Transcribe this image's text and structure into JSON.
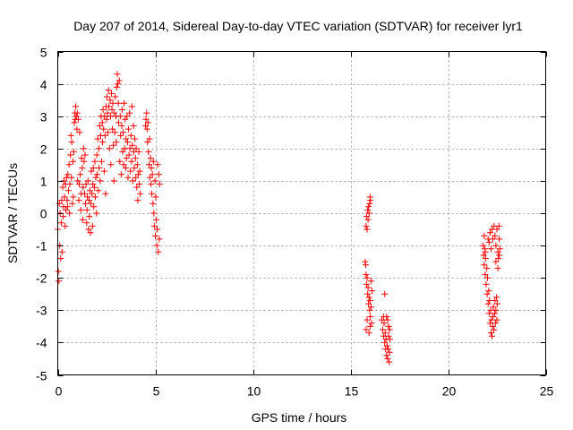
{
  "chart_data": {
    "type": "scatter",
    "title": "Day 207 of 2014, Sidereal Day-to-day VTEC variation (SDTVAR) for receiver lyr1",
    "xlabel": "GPS time / hours",
    "ylabel": "SDTVAR / TECUs",
    "xlim": [
      0,
      25
    ],
    "ylim": [
      -5,
      5
    ],
    "x_ticks": [
      "0",
      "5",
      "10",
      "15",
      "20",
      "25"
    ],
    "y_ticks": [
      "-5",
      "-4",
      "-3",
      "-2",
      "-1",
      "0",
      "1",
      "2",
      "3",
      "4",
      "5"
    ],
    "grid": true,
    "marker": "+",
    "color": "#ff0000",
    "series": [
      {
        "name": "SDTVAR",
        "points": [
          [
            0.0,
            -0.5
          ],
          [
            0.03,
            -1.8
          ],
          [
            0.06,
            -2.1
          ],
          [
            0.08,
            0.3
          ],
          [
            0.1,
            -1.0
          ],
          [
            0.12,
            0.0
          ],
          [
            0.15,
            -1.4
          ],
          [
            0.18,
            -0.3
          ],
          [
            0.2,
            0.4
          ],
          [
            0.22,
            -1.2
          ],
          [
            0.25,
            0.8
          ],
          [
            0.28,
            -0.1
          ],
          [
            0.3,
            0.2
          ],
          [
            0.32,
            1.0
          ],
          [
            0.35,
            0.5
          ],
          [
            0.38,
            -0.4
          ],
          [
            0.4,
            0.9
          ],
          [
            0.42,
            0.1
          ],
          [
            0.45,
            1.1
          ],
          [
            0.48,
            0.4
          ],
          [
            0.5,
            0.2
          ],
          [
            0.52,
            1.2
          ],
          [
            0.55,
            0.7
          ],
          [
            0.58,
            1.5
          ],
          [
            0.6,
            0.0
          ],
          [
            0.62,
            0.9
          ],
          [
            0.65,
            1.8
          ],
          [
            0.68,
            2.4
          ],
          [
            0.7,
            1.1
          ],
          [
            0.72,
            2.2
          ],
          [
            0.75,
            0.3
          ],
          [
            0.78,
            1.6
          ],
          [
            0.8,
            0.5
          ],
          [
            0.82,
            1.9
          ],
          [
            0.85,
            2.8
          ],
          [
            0.88,
            3.1
          ],
          [
            0.9,
            2.9
          ],
          [
            0.92,
            3.3
          ],
          [
            0.95,
            3.0
          ],
          [
            0.98,
            2.6
          ],
          [
            1.0,
            3.1
          ],
          [
            1.02,
            1.0
          ],
          [
            1.05,
            2.9
          ],
          [
            1.08,
            0.4
          ],
          [
            1.1,
            0.9
          ],
          [
            1.12,
            2.5
          ],
          [
            1.15,
            1.2
          ],
          [
            1.18,
            0.1
          ],
          [
            1.2,
            0.6
          ],
          [
            1.22,
            1.7
          ],
          [
            1.25,
            1.4
          ],
          [
            1.28,
            -0.2
          ],
          [
            1.3,
            0.8
          ],
          [
            1.32,
            2.0
          ],
          [
            1.35,
            1.6
          ],
          [
            1.38,
            0.6
          ],
          [
            1.4,
            1.8
          ],
          [
            1.42,
            0.3
          ],
          [
            1.45,
            0.9
          ],
          [
            1.48,
            -0.3
          ],
          [
            1.5,
            0.1
          ],
          [
            1.52,
            0.5
          ],
          [
            1.55,
            1.0
          ],
          [
            1.58,
            -0.5
          ],
          [
            1.6,
            0.4
          ],
          [
            1.62,
            -0.1
          ],
          [
            1.65,
            0.7
          ],
          [
            1.68,
            -0.6
          ],
          [
            1.7,
            0.3
          ],
          [
            1.72,
            1.3
          ],
          [
            1.75,
            0.6
          ],
          [
            1.78,
            -0.4
          ],
          [
            1.8,
            0.9
          ],
          [
            1.82,
            1.4
          ],
          [
            1.85,
            0.2
          ],
          [
            1.88,
            0.8
          ],
          [
            1.9,
            1.6
          ],
          [
            1.92,
            0.5
          ],
          [
            1.95,
            1.1
          ],
          [
            1.98,
            0.0
          ],
          [
            2.0,
            1.8
          ],
          [
            2.02,
            1.2
          ],
          [
            2.05,
            2.3
          ],
          [
            2.08,
            0.7
          ],
          [
            2.1,
            2.0
          ],
          [
            2.12,
            1.4
          ],
          [
            2.15,
            2.7
          ],
          [
            2.18,
            1.0
          ],
          [
            2.2,
            2.4
          ],
          [
            2.22,
            3.0
          ],
          [
            2.25,
            1.6
          ],
          [
            2.28,
            2.8
          ],
          [
            2.3,
            2.2
          ],
          [
            2.32,
            3.2
          ],
          [
            2.35,
            2.6
          ],
          [
            2.38,
            1.3
          ],
          [
            2.4,
            3.0
          ],
          [
            2.42,
            2.4
          ],
          [
            2.45,
            0.6
          ],
          [
            2.48,
            3.3
          ],
          [
            2.5,
            2.9
          ],
          [
            2.52,
            3.6
          ],
          [
            2.55,
            3.1
          ],
          [
            2.58,
            2.5
          ],
          [
            2.6,
            3.8
          ],
          [
            2.62,
            3.3
          ],
          [
            2.65,
            2.0
          ],
          [
            2.68,
            3.5
          ],
          [
            2.7,
            3.0
          ],
          [
            2.72,
            1.5
          ],
          [
            2.75,
            3.7
          ],
          [
            2.78,
            3.2
          ],
          [
            2.8,
            2.6
          ],
          [
            2.82,
            3.4
          ],
          [
            2.85,
            2.1
          ],
          [
            2.88,
            1.0
          ],
          [
            2.9,
            3.1
          ],
          [
            2.92,
            2.5
          ],
          [
            2.95,
            3.6
          ],
          [
            2.98,
            3.0
          ],
          [
            3.0,
            2.2
          ],
          [
            3.02,
            3.9
          ],
          [
            3.05,
            4.3
          ],
          [
            3.08,
            4.0
          ],
          [
            3.1,
            3.4
          ],
          [
            3.12,
            2.8
          ],
          [
            3.15,
            4.1
          ],
          [
            3.18,
            1.6
          ],
          [
            3.2,
            3.0
          ],
          [
            3.22,
            2.4
          ],
          [
            3.25,
            1.2
          ],
          [
            3.28,
            2.7
          ],
          [
            3.3,
            3.2
          ],
          [
            3.32,
            1.9
          ],
          [
            3.35,
            2.5
          ],
          [
            3.38,
            1.5
          ],
          [
            3.4,
            3.4
          ],
          [
            3.42,
            2.0
          ],
          [
            3.45,
            2.9
          ],
          [
            3.48,
            1.4
          ],
          [
            3.5,
            2.3
          ],
          [
            3.52,
            1.7
          ],
          [
            3.55,
            3.0
          ],
          [
            3.58,
            2.2
          ],
          [
            3.6,
            1.1
          ],
          [
            3.62,
            2.6
          ],
          [
            3.65,
            1.8
          ],
          [
            3.68,
            3.1
          ],
          [
            3.7,
            2.0
          ],
          [
            3.72,
            1.3
          ],
          [
            3.75,
            2.4
          ],
          [
            3.78,
            1.6
          ],
          [
            3.8,
            3.3
          ],
          [
            3.82,
            2.1
          ],
          [
            3.85,
            1.0
          ],
          [
            3.88,
            2.7
          ],
          [
            3.9,
            1.9
          ],
          [
            3.92,
            1.4
          ],
          [
            3.95,
            2.3
          ],
          [
            3.98,
            1.7
          ],
          [
            4.0,
            1.1
          ],
          [
            4.02,
            2.0
          ],
          [
            4.05,
            0.8
          ],
          [
            4.08,
            1.5
          ],
          [
            4.1,
            0.4
          ],
          [
            4.12,
            1.2
          ],
          [
            4.15,
            1.9
          ],
          [
            4.18,
            0.9
          ],
          [
            4.2,
            1.3
          ],
          [
            4.22,
            0.6
          ],
          [
            4.5,
            2.7
          ],
          [
            4.52,
            2.9
          ],
          [
            4.55,
            3.1
          ],
          [
            4.58,
            2.6
          ],
          [
            4.6,
            2.2
          ],
          [
            4.62,
            2.8
          ],
          [
            4.65,
            1.9
          ],
          [
            4.68,
            1.5
          ],
          [
            4.7,
            2.3
          ],
          [
            4.72,
            1.1
          ],
          [
            4.75,
            1.7
          ],
          [
            4.78,
            0.9
          ],
          [
            4.8,
            1.4
          ],
          [
            4.82,
            0.6
          ],
          [
            4.85,
            1.2
          ],
          [
            4.88,
            0.3
          ],
          [
            4.9,
            1.6
          ],
          [
            4.92,
            0.0
          ],
          [
            4.95,
            -0.4
          ],
          [
            4.98,
            1.0
          ],
          [
            5.0,
            -0.7
          ],
          [
            5.02,
            0.5
          ],
          [
            5.05,
            -0.2
          ],
          [
            5.08,
            -1.0
          ],
          [
            5.1,
            -0.5
          ],
          [
            5.12,
            1.5
          ],
          [
            5.15,
            -1.2
          ],
          [
            5.18,
            1.2
          ],
          [
            5.2,
            -0.8
          ],
          [
            5.22,
            0.9
          ],
          [
            15.8,
            -0.4
          ],
          [
            15.82,
            -0.1
          ],
          [
            15.85,
            -0.5
          ],
          [
            15.88,
            0.1
          ],
          [
            15.9,
            -0.2
          ],
          [
            15.92,
            0.2
          ],
          [
            15.95,
            0.0
          ],
          [
            15.98,
            0.3
          ],
          [
            16.0,
            0.5
          ],
          [
            16.02,
            0.4
          ],
          [
            15.75,
            -1.5
          ],
          [
            15.78,
            -1.6
          ],
          [
            15.8,
            -1.9
          ],
          [
            15.82,
            -2.2
          ],
          [
            15.85,
            -2.0
          ],
          [
            15.88,
            -2.5
          ],
          [
            15.9,
            -2.3
          ],
          [
            15.92,
            -2.8
          ],
          [
            15.95,
            -2.6
          ],
          [
            15.98,
            -3.0
          ],
          [
            16.0,
            -2.7
          ],
          [
            16.02,
            -3.2
          ],
          [
            16.05,
            -2.9
          ],
          [
            16.08,
            -3.4
          ],
          [
            16.1,
            -2.4
          ],
          [
            15.8,
            -3.6
          ],
          [
            15.85,
            -3.3
          ],
          [
            16.0,
            -3.5
          ],
          [
            16.05,
            -2.1
          ],
          [
            15.95,
            -3.7
          ],
          [
            16.6,
            -3.3
          ],
          [
            16.65,
            -3.6
          ],
          [
            16.7,
            -3.8
          ],
          [
            16.72,
            -3.4
          ],
          [
            16.75,
            -4.0
          ],
          [
            16.78,
            -3.7
          ],
          [
            16.8,
            -4.2
          ],
          [
            16.82,
            -3.9
          ],
          [
            16.85,
            -4.4
          ],
          [
            16.88,
            -4.1
          ],
          [
            16.9,
            -4.5
          ],
          [
            16.92,
            -4.2
          ],
          [
            16.95,
            -3.8
          ],
          [
            16.98,
            -4.6
          ],
          [
            17.0,
            -4.3
          ],
          [
            17.02,
            -3.9
          ],
          [
            16.85,
            -3.2
          ],
          [
            16.95,
            -3.5
          ],
          [
            16.7,
            -3.2
          ],
          [
            17.0,
            -3.6
          ],
          [
            16.75,
            -2.5
          ],
          [
            16.9,
            -3.3
          ],
          [
            21.8,
            -1.0
          ],
          [
            21.82,
            -1.3
          ],
          [
            21.85,
            -1.6
          ],
          [
            21.88,
            -1.1
          ],
          [
            21.9,
            -1.9
          ],
          [
            21.92,
            -1.4
          ],
          [
            21.95,
            -2.2
          ],
          [
            21.98,
            -1.7
          ],
          [
            22.0,
            -2.5
          ],
          [
            22.02,
            -2.0
          ],
          [
            22.05,
            -2.8
          ],
          [
            22.08,
            -2.4
          ],
          [
            22.1,
            -3.1
          ],
          [
            22.12,
            -2.7
          ],
          [
            22.15,
            -3.4
          ],
          [
            22.18,
            -3.0
          ],
          [
            22.2,
            -3.7
          ],
          [
            22.22,
            -3.3
          ],
          [
            22.25,
            -3.8
          ],
          [
            22.28,
            -3.5
          ],
          [
            22.3,
            -3.2
          ],
          [
            22.32,
            -2.9
          ],
          [
            22.35,
            -3.6
          ],
          [
            22.38,
            -3.1
          ],
          [
            22.4,
            -2.7
          ],
          [
            22.42,
            -3.4
          ],
          [
            22.45,
            -3.0
          ],
          [
            22.48,
            -2.6
          ],
          [
            22.5,
            -3.3
          ],
          [
            22.52,
            -2.8
          ],
          [
            22.1,
            -0.9
          ],
          [
            22.15,
            -0.6
          ],
          [
            22.2,
            -1.1
          ],
          [
            22.25,
            -0.5
          ],
          [
            22.3,
            -0.8
          ],
          [
            22.35,
            -0.4
          ],
          [
            22.4,
            -0.7
          ],
          [
            22.45,
            -1.0
          ],
          [
            22.5,
            -0.5
          ],
          [
            22.55,
            -1.2
          ],
          [
            22.6,
            -0.4
          ],
          [
            22.62,
            -0.8
          ],
          [
            22.58,
            -1.4
          ],
          [
            22.65,
            -1.1
          ],
          [
            21.85,
            -0.7
          ],
          [
            21.9,
            -1.2
          ],
          [
            22.05,
            -0.8
          ],
          [
            22.45,
            -1.5
          ],
          [
            22.55,
            -1.7
          ],
          [
            22.62,
            -1.3
          ]
        ]
      }
    ]
  }
}
